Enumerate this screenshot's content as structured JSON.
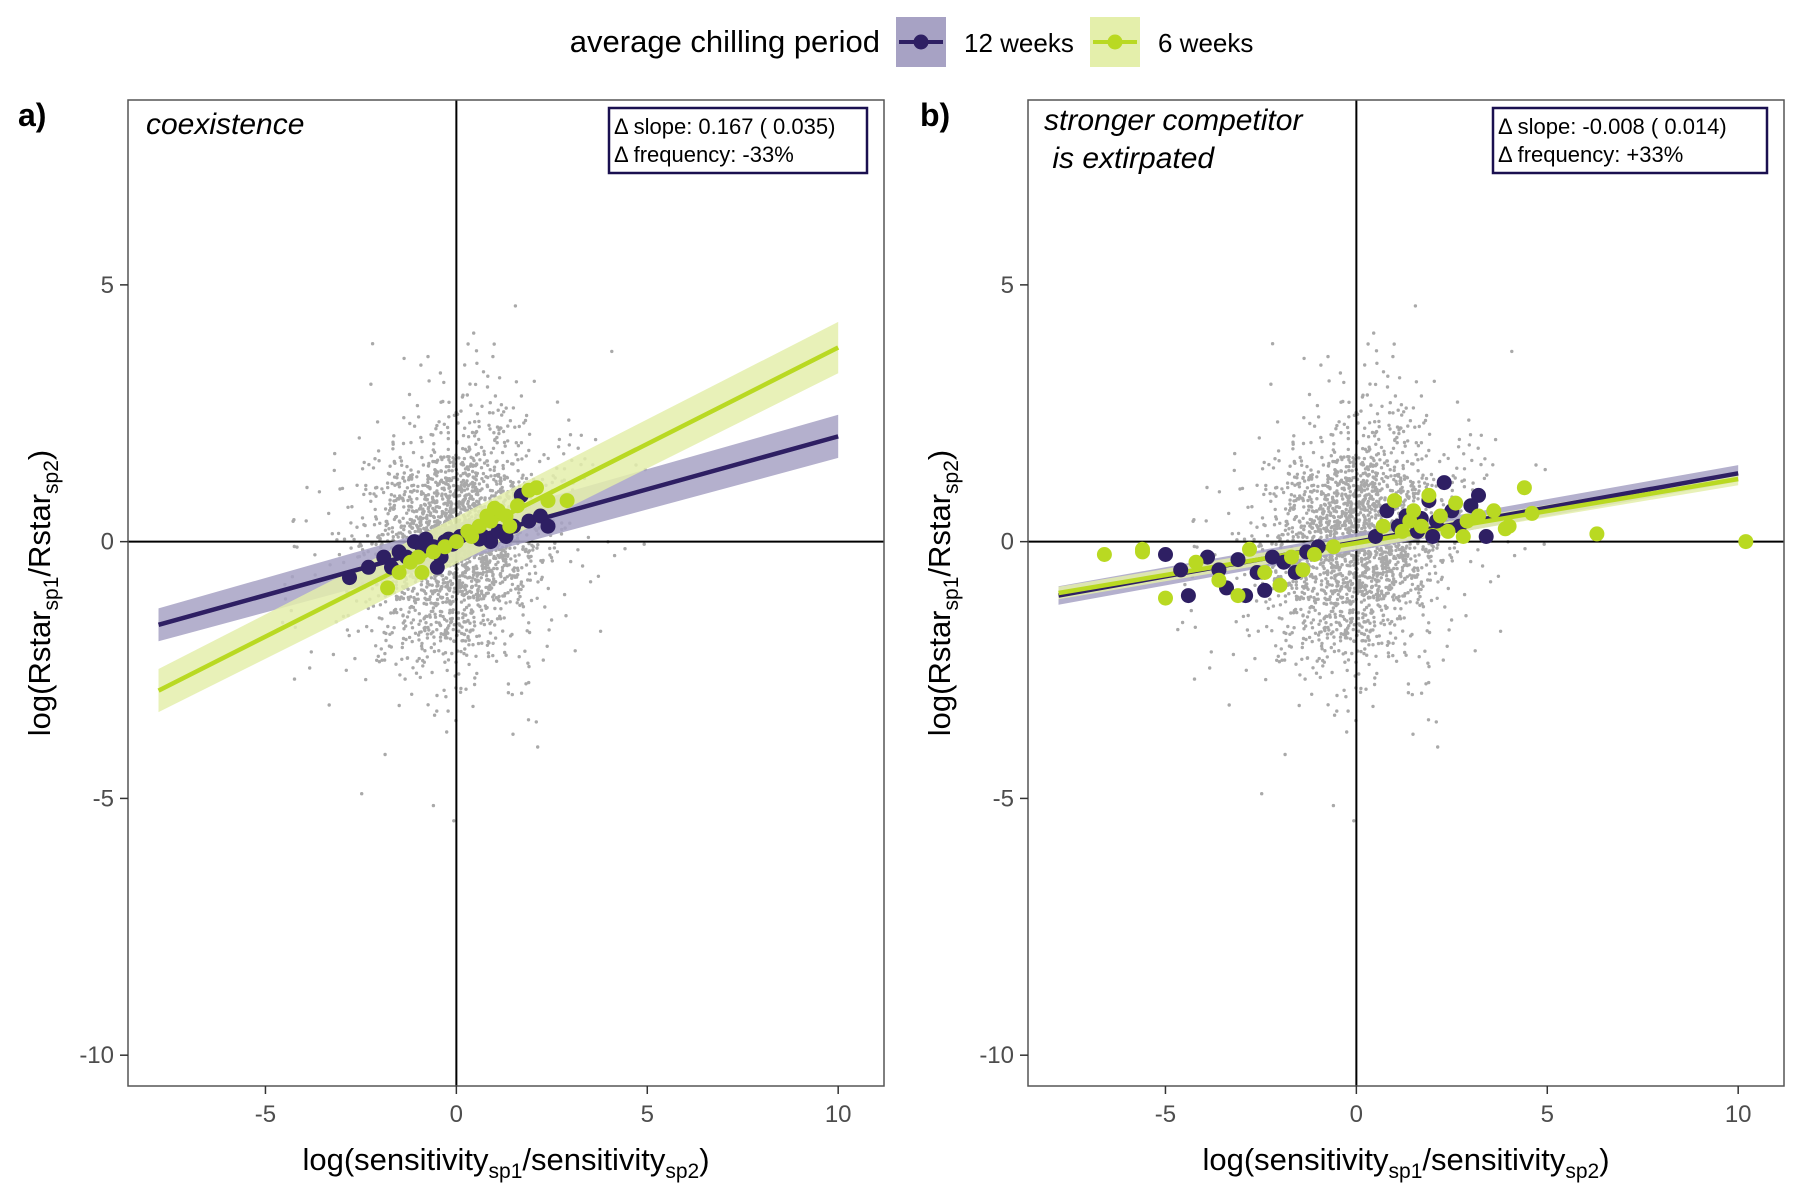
{
  "legend": {
    "title": "average chilling period",
    "items": [
      {
        "label": "12 weeks",
        "color": "#2e1f63",
        "band": "#a7a2c4"
      },
      {
        "label": "6 weeks",
        "color": "#b9d922",
        "band": "#e4efab"
      }
    ]
  },
  "colors": {
    "points": "#a9a9a9",
    "panel_border": "#555555",
    "zero_line": "#000000",
    "annotation_border": "#1a1050"
  },
  "chart_data": [
    {
      "type": "scatter",
      "panel_label": "a)",
      "subtitle_lines": [
        "coexistence"
      ],
      "annotation": {
        "line1": "Δ slope: 0.167 ( 0.035)",
        "line2": "Δ frequency: -33%"
      },
      "xlabel": {
        "base": "log(sensitivity",
        "sub1": "sp1",
        "mid": "/sensitivity",
        "sub2": "sp2",
        "end": ")"
      },
      "ylabel": {
        "base": "log(Rstar",
        "sub1": "sp1",
        "mid": "/Rstar",
        "sub2": "sp2",
        "end": ")"
      },
      "xlim": [
        -8.6,
        11.2
      ],
      "ylim": [
        -10.6,
        8.6
      ],
      "xticks": [
        -5,
        0,
        5,
        10
      ],
      "yticks": [
        -10,
        -5,
        0,
        5
      ],
      "series": [
        {
          "name": "12 weeks",
          "fit": {
            "x": [
              -7.8,
              10.0
            ],
            "y": [
              -1.62,
              2.05
            ],
            "band_start": 0.32,
            "band_end": 0.42
          },
          "points": [
            [
              -2.8,
              -0.7
            ],
            [
              -2.3,
              -0.5
            ],
            [
              -1.9,
              -0.3
            ],
            [
              -1.7,
              -0.5
            ],
            [
              -1.5,
              -0.2
            ],
            [
              -1.3,
              -0.3
            ],
            [
              -1.1,
              0.0
            ],
            [
              -0.9,
              -0.1
            ],
            [
              -0.8,
              0.05
            ],
            [
              -0.6,
              -0.1
            ],
            [
              -0.5,
              -0.5
            ],
            [
              -0.4,
              -0.3
            ],
            [
              -0.3,
              0.0
            ],
            [
              -0.2,
              0.05
            ],
            [
              0.1,
              0.1
            ],
            [
              0.3,
              0.15
            ],
            [
              0.5,
              0.2
            ],
            [
              0.7,
              0.1
            ],
            [
              0.9,
              0.0
            ],
            [
              1.1,
              0.2
            ],
            [
              1.3,
              0.1
            ],
            [
              1.5,
              0.3
            ],
            [
              1.7,
              0.9
            ],
            [
              1.9,
              0.4
            ],
            [
              2.2,
              0.5
            ],
            [
              2.4,
              0.3
            ],
            [
              -0.1,
              -0.05
            ],
            [
              0.6,
              0.05
            ]
          ]
        },
        {
          "name": "6 weeks",
          "fit": {
            "x": [
              -7.8,
              10.0
            ],
            "y": [
              -2.9,
              3.78
            ],
            "band_start": 0.42,
            "band_end": 0.5
          },
          "points": [
            [
              -1.8,
              -0.9
            ],
            [
              -1.5,
              -0.6
            ],
            [
              -1.2,
              -0.4
            ],
            [
              -0.9,
              -0.6
            ],
            [
              -0.6,
              -0.2
            ],
            [
              -0.3,
              -0.1
            ],
            [
              0.0,
              0.0
            ],
            [
              0.3,
              0.2
            ],
            [
              0.6,
              0.3
            ],
            [
              0.9,
              0.4
            ],
            [
              1.1,
              0.6
            ],
            [
              1.3,
              0.5
            ],
            [
              1.6,
              0.7
            ],
            [
              1.9,
              1.0
            ],
            [
              2.1,
              1.05
            ],
            [
              2.4,
              0.8
            ],
            [
              2.9,
              0.8
            ],
            [
              0.8,
              0.5
            ],
            [
              1.4,
              0.3
            ],
            [
              -1.0,
              -0.3
            ],
            [
              0.4,
              0.1
            ],
            [
              1.0,
              0.65
            ]
          ]
        }
      ],
      "background_points": 2200
    },
    {
      "type": "scatter",
      "panel_label": "b)",
      "subtitle_lines": [
        "stronger competitor",
        " is extirpated"
      ],
      "annotation": {
        "line1": "Δ slope: -0.008 ( 0.014)",
        "line2": "Δ frequency: +33%"
      },
      "xlabel": {
        "base": "log(sensitivity",
        "sub1": "sp1",
        "mid": "/sensitivity",
        "sub2": "sp2",
        "end": ")"
      },
      "ylabel": {
        "base": "log(Rstar",
        "sub1": "sp1",
        "mid": "/Rstar",
        "sub2": "sp2",
        "end": ")"
      },
      "xlim": [
        -8.6,
        11.2
      ],
      "ylim": [
        -10.6,
        8.6
      ],
      "xticks": [
        -5,
        0,
        5,
        10
      ],
      "yticks": [
        -10,
        -5,
        0,
        5
      ],
      "series": [
        {
          "name": "12 weeks",
          "fit": {
            "x": [
              -7.8,
              10.0
            ],
            "y": [
              -1.05,
              1.33
            ],
            "band_start": 0.18,
            "band_end": 0.16
          },
          "points": [
            [
              -5.0,
              -0.25
            ],
            [
              -4.6,
              -0.55
            ],
            [
              -4.4,
              -1.05
            ],
            [
              -3.9,
              -0.3
            ],
            [
              -3.6,
              -0.55
            ],
            [
              -3.4,
              -0.9
            ],
            [
              -3.1,
              -0.35
            ],
            [
              -2.9,
              -1.05
            ],
            [
              -2.6,
              -0.6
            ],
            [
              -2.4,
              -0.95
            ],
            [
              -2.2,
              -0.3
            ],
            [
              -1.9,
              -0.4
            ],
            [
              -1.6,
              -0.6
            ],
            [
              -1.3,
              -0.2
            ],
            [
              -1.0,
              -0.1
            ],
            [
              0.5,
              0.1
            ],
            [
              0.8,
              0.6
            ],
            [
              1.1,
              0.3
            ],
            [
              1.3,
              0.5
            ],
            [
              1.6,
              0.2
            ],
            [
              1.9,
              0.8
            ],
            [
              2.1,
              0.4
            ],
            [
              2.3,
              1.15
            ],
            [
              2.5,
              0.6
            ],
            [
              2.7,
              0.3
            ],
            [
              3.0,
              0.7
            ],
            [
              3.2,
              0.9
            ],
            [
              3.4,
              0.1
            ],
            [
              2.0,
              0.1
            ],
            [
              1.7,
              0.45
            ]
          ]
        },
        {
          "name": "6 weeks",
          "fit": {
            "x": [
              -7.8,
              10.0
            ],
            "y": [
              -1.0,
              1.22
            ],
            "band_start": 0.12,
            "band_end": 0.12
          },
          "points": [
            [
              -6.6,
              -0.25
            ],
            [
              -5.6,
              -0.15
            ],
            [
              -5.0,
              -1.1
            ],
            [
              -4.2,
              -0.4
            ],
            [
              -3.6,
              -0.75
            ],
            [
              -3.1,
              -1.05
            ],
            [
              -2.8,
              -0.15
            ],
            [
              -2.4,
              -0.6
            ],
            [
              -2.0,
              -0.85
            ],
            [
              -1.7,
              -0.3
            ],
            [
              -1.4,
              -0.55
            ],
            [
              -1.1,
              -0.25
            ],
            [
              -0.6,
              -0.1
            ],
            [
              0.7,
              0.3
            ],
            [
              1.0,
              0.8
            ],
            [
              1.2,
              0.2
            ],
            [
              1.5,
              0.6
            ],
            [
              1.7,
              0.3
            ],
            [
              1.9,
              0.9
            ],
            [
              2.2,
              0.5
            ],
            [
              2.4,
              0.2
            ],
            [
              2.6,
              0.75
            ],
            [
              2.9,
              0.4
            ],
            [
              3.2,
              0.5
            ],
            [
              3.6,
              0.6
            ],
            [
              4.0,
              0.3
            ],
            [
              4.4,
              1.05
            ],
            [
              4.6,
              0.55
            ],
            [
              6.3,
              0.15
            ],
            [
              10.2,
              0.0
            ],
            [
              -5.6,
              -0.2
            ],
            [
              1.4,
              0.4
            ],
            [
              2.8,
              0.1
            ],
            [
              3.9,
              0.25
            ]
          ]
        }
      ],
      "background_points": 2200
    }
  ]
}
